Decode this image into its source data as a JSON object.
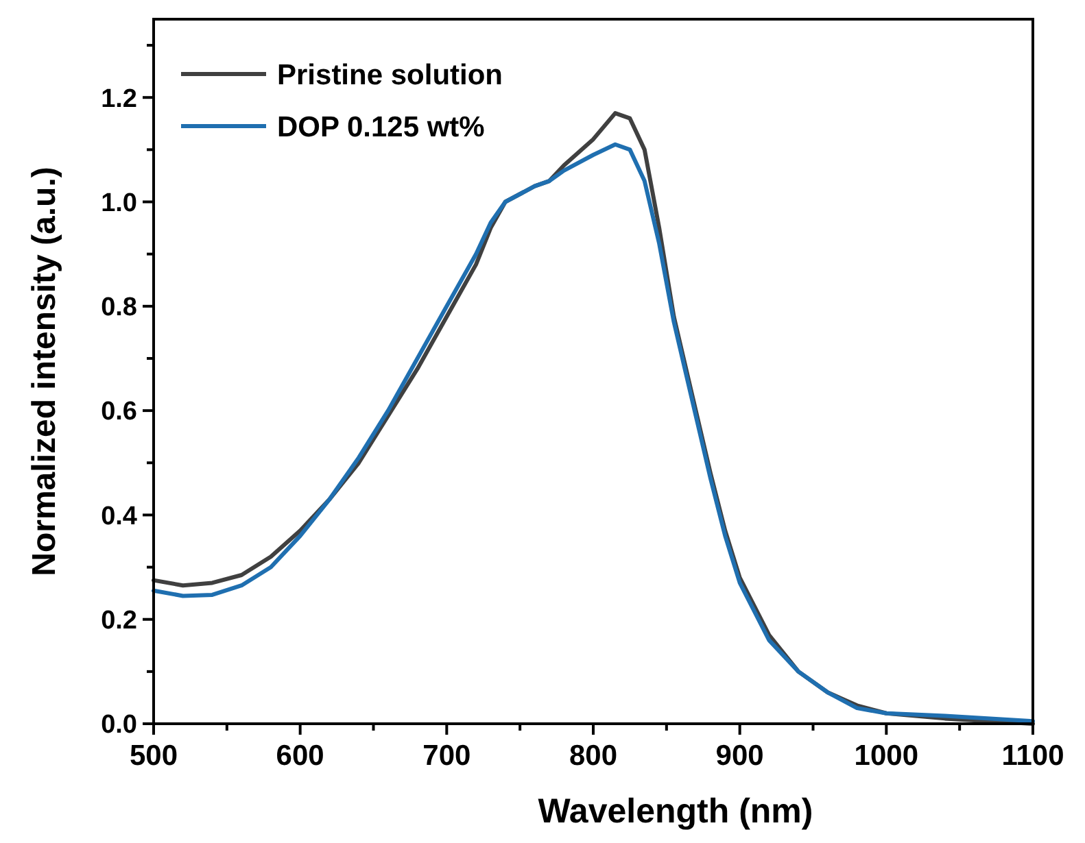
{
  "chart_data": {
    "type": "line",
    "xlabel": "Wavelength (nm)",
    "ylabel": "Normalized intensity (a.u.)",
    "xlim": [
      500,
      1100
    ],
    "ylim": [
      0,
      1.35
    ],
    "xticks": [
      500,
      {
        "value": 550,
        "label": null
      },
      600,
      {
        "value": 650,
        "label": null
      },
      700,
      {
        "value": 750,
        "label": null
      },
      800,
      {
        "value": 850,
        "label": null
      },
      900,
      {
        "value": 950,
        "label": null
      },
      1000,
      {
        "value": 1050,
        "label": null
      },
      1100
    ],
    "yticks": [
      {
        "value": 0,
        "label": "0.0"
      },
      {
        "value": 0.1,
        "label": null
      },
      0.2,
      {
        "value": 0.3,
        "label": null
      },
      0.4,
      {
        "value": 0.5,
        "label": null
      },
      0.6,
      {
        "value": 0.7,
        "label": null
      },
      0.8,
      {
        "value": 0.9,
        "label": null
      },
      {
        "value": 1,
        "label": "1.0"
      },
      {
        "value": 1.1,
        "label": null
      },
      1.2,
      {
        "value": 1.3,
        "label": null
      }
    ],
    "grid": false,
    "legend": "top left",
    "marker": "none",
    "line_style": "solid",
    "x": [
      500,
      520,
      540,
      560,
      580,
      600,
      620,
      640,
      660,
      680,
      700,
      720,
      730,
      740,
      760,
      770,
      780,
      800,
      815,
      825,
      835,
      845,
      855,
      870,
      880,
      890,
      900,
      920,
      940,
      960,
      980,
      1000,
      1040,
      1100
    ],
    "series": [
      {
        "name": "Pristine solution",
        "color": "#404040",
        "values": [
          0.275,
          0.265,
          0.27,
          0.285,
          0.32,
          0.37,
          0.43,
          0.5,
          0.59,
          0.68,
          0.78,
          0.88,
          0.95,
          1.0,
          1.03,
          1.04,
          1.07,
          1.12,
          1.17,
          1.16,
          1.1,
          0.95,
          0.78,
          0.6,
          0.48,
          0.37,
          0.28,
          0.17,
          0.1,
          0.06,
          0.035,
          0.02,
          0.01,
          0.0
        ]
      },
      {
        "name": "DOP 0.125 wt%",
        "color": "#1f6fb0",
        "values": [
          0.255,
          0.245,
          0.247,
          0.265,
          0.3,
          0.36,
          0.43,
          0.51,
          0.6,
          0.7,
          0.8,
          0.9,
          0.96,
          1.0,
          1.03,
          1.04,
          1.06,
          1.09,
          1.11,
          1.1,
          1.04,
          0.92,
          0.77,
          0.59,
          0.47,
          0.36,
          0.27,
          0.16,
          0.1,
          0.06,
          0.03,
          0.02,
          0.015,
          0.005
        ]
      }
    ]
  }
}
